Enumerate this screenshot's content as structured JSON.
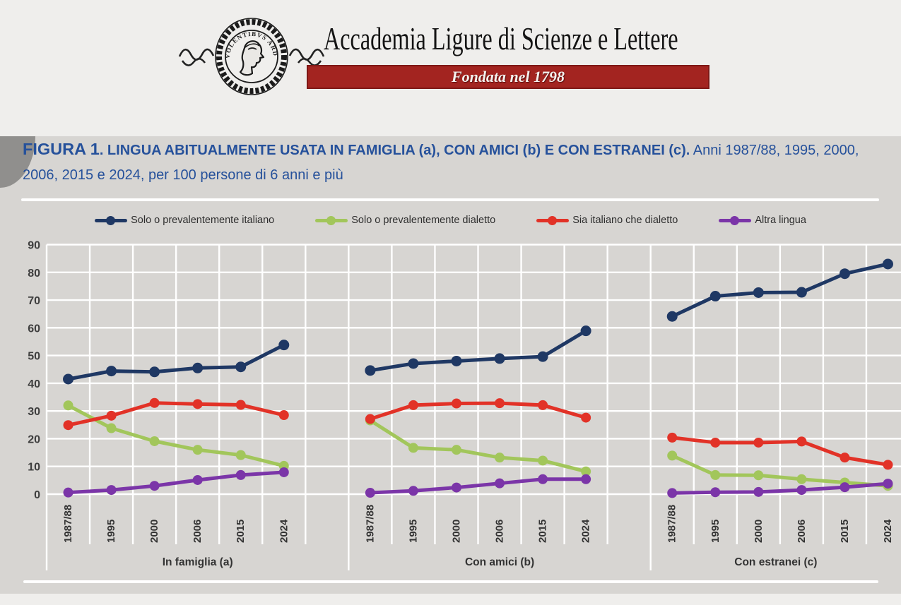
{
  "header": {
    "academy_name": "Accademia Ligure di Scienze e Lettere",
    "banner_text": "Fondata nel 1798",
    "banner_color": "#A32420",
    "logo_motto": "NIL VOLENTIBVS ARDVVM"
  },
  "figure": {
    "label": "FIGURA 1",
    "title_bold": ". LINGUA ABITUALMENTE USATA IN FAMIGLIA (a), CON AMICI (b) E CON ESTRANEI (c).",
    "title_regular": " Anni 1987/88, 1995, 2000, 2006, 2015 e 2024, per 100 persone di 6 anni e più",
    "title_color": "#26519B",
    "background": "#D7D5D2"
  },
  "chart_data": {
    "type": "line",
    "categories": [
      "1987/88",
      "1995",
      "2000",
      "2006",
      "2015",
      "2024"
    ],
    "panel_labels": [
      "In famiglia (a)",
      "Con amici (b)",
      "Con estranei (c)"
    ],
    "ylim": [
      0,
      90
    ],
    "yticks": [
      0,
      10,
      20,
      30,
      40,
      50,
      60,
      70,
      80,
      90
    ],
    "grid": true,
    "legend_position": "top",
    "gridline_color": "#FFFFFF",
    "plot_background": "#D7D5D2",
    "series": [
      {
        "name": "Solo o prevalentemente italiano",
        "color": "#1F3864",
        "values_by_panel": [
          [
            41.5,
            44.4,
            44.1,
            45.5,
            45.9,
            53.8
          ],
          [
            44.6,
            47.1,
            48.0,
            48.9,
            49.6,
            58.9
          ],
          [
            64.1,
            71.4,
            72.7,
            72.8,
            79.5,
            83.0
          ]
        ]
      },
      {
        "name": "Solo o prevalentemente dialetto",
        "color": "#A2C65B",
        "values_by_panel": [
          [
            32.0,
            23.8,
            19.1,
            16.0,
            14.1,
            10.2
          ],
          [
            26.6,
            16.7,
            16.0,
            13.2,
            12.1,
            8.2
          ],
          [
            13.9,
            6.9,
            6.8,
            5.4,
            4.2,
            3.0
          ]
        ]
      },
      {
        "name": "Sia italiano che dialetto",
        "color": "#E23227",
        "values_by_panel": [
          [
            24.9,
            28.3,
            32.9,
            32.5,
            32.2,
            28.5
          ],
          [
            27.1,
            32.1,
            32.7,
            32.8,
            32.1,
            27.6
          ],
          [
            20.4,
            18.6,
            18.6,
            19.0,
            13.2,
            10.6
          ]
        ]
      },
      {
        "name": "Altra lingua",
        "color": "#7B35A8",
        "values_by_panel": [
          [
            0.6,
            1.5,
            3.0,
            5.1,
            6.9,
            7.9
          ],
          [
            0.5,
            1.2,
            2.4,
            3.9,
            5.4,
            5.4
          ],
          [
            0.4,
            0.7,
            0.8,
            1.5,
            2.5,
            3.8
          ]
        ]
      }
    ]
  }
}
